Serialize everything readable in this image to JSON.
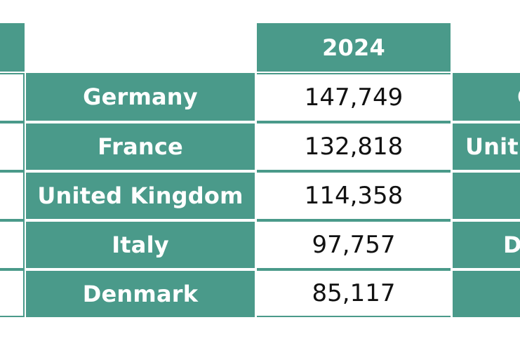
{
  "table": {
    "year_header": "2024",
    "rows": [
      {
        "country": "Germany",
        "value": "147,749"
      },
      {
        "country": "France",
        "value": "132,818"
      },
      {
        "country": "United Kingdom",
        "value": "114,358"
      },
      {
        "country": "Italy",
        "value": "97,757"
      },
      {
        "country": "Denmark",
        "value": "85,117"
      }
    ]
  },
  "right_table_fragments": [
    "G",
    "Unit",
    "",
    "D",
    ""
  ],
  "colors": {
    "teal": "#4a9a8a",
    "text_dark": "#111111",
    "background": "#ffffff"
  }
}
